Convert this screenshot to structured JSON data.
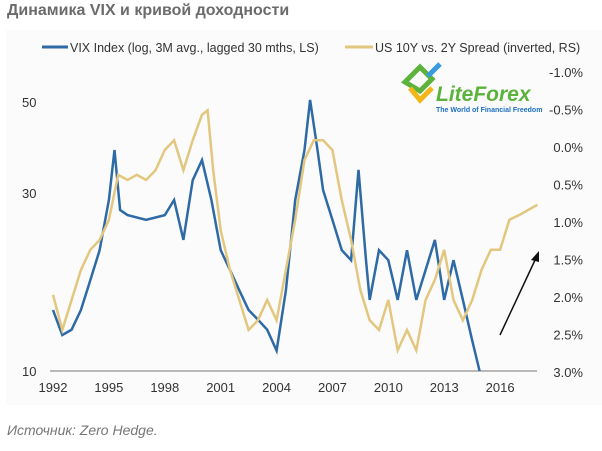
{
  "title": "Динамика VIX и кривой доходности",
  "source": "Источник: Zero Hedge.",
  "logo": {
    "name": "LiteForex",
    "tagline": "The World of Financial Freedom"
  },
  "chart_data": {
    "type": "line",
    "x_ticks": [
      "1992",
      "1995",
      "1998",
      "2001",
      "2004",
      "2007",
      "2010",
      "2013",
      "2016"
    ],
    "left_axis": {
      "scale": "log",
      "ticks": [
        "10",
        "30",
        "50"
      ],
      "range": [
        10,
        50
      ]
    },
    "right_axis": {
      "inverted": true,
      "ticks": [
        "-1.0%",
        "-0.5%",
        "0.0%",
        "0.5%",
        "1.0%",
        "1.5%",
        "2.0%",
        "2.5%",
        "3.0%"
      ],
      "range": [
        -1.0,
        3.0
      ]
    },
    "colors": {
      "vix": "#2e6aa6",
      "spread": "#e3c77f"
    },
    "series": [
      {
        "name": "VIX Index (log, 3M avg., lagged 30 mths, LS)",
        "axis": "left",
        "x": [
          1992,
          1992.5,
          1993,
          1993.5,
          1994,
          1994.5,
          1995,
          1995.3,
          1995.6,
          1996,
          1997,
          1998,
          1998.5,
          1999,
          1999.5,
          2000,
          2000.5,
          2001,
          2001.5,
          2002,
          2002.5,
          2003,
          2003.5,
          2004,
          2004.5,
          2005,
          2005.5,
          2005.8,
          2006.2,
          2006.5,
          2007,
          2007.5,
          2008,
          2008.4,
          2008.8,
          2009,
          2009.5,
          2010,
          2010.5,
          2011,
          2011.5,
          2012,
          2012.5,
          2013,
          2013.5,
          2014,
          2014.5,
          2014.9
        ],
        "values": [
          14.4,
          12.4,
          12.8,
          14.4,
          17.2,
          20.6,
          27.8,
          37.5,
          26.2,
          25.4,
          24.7,
          25.4,
          27.8,
          21.9,
          31.3,
          35.3,
          27.8,
          20.6,
          18.3,
          16.2,
          14.4,
          13.6,
          12.8,
          11.3,
          16.2,
          27.8,
          37.5,
          50.6,
          37.5,
          29.5,
          24.7,
          20.6,
          19.4,
          33.3,
          19.4,
          15.3,
          20.6,
          19.4,
          15.3,
          20.6,
          15.3,
          18.3,
          21.9,
          15.3,
          19.4,
          15.3,
          12.0,
          10
        ]
      },
      {
        "name": "US 10Y vs. 2Y Spread (inverted, RS)",
        "axis": "right",
        "x": [
          1992,
          1992.5,
          1993,
          1993.5,
          1994,
          1994.5,
          1995,
          1995.5,
          1996,
          1996.5,
          1997,
          1997.5,
          1998,
          1998.5,
          1999,
          1999.5,
          2000,
          2000.3,
          2000.6,
          2001,
          2001.5,
          2002,
          2002.5,
          2003,
          2003.5,
          2004,
          2004.5,
          2005,
          2005.5,
          2006,
          2006.5,
          2007,
          2007.5,
          2008,
          2008.5,
          2009,
          2009.5,
          2010,
          2010.5,
          2011,
          2011.5,
          2012,
          2012.5,
          2013,
          2013.5,
          2014,
          2014.5,
          2015,
          2015.5,
          2016,
          2016.5,
          2017,
          2017.5,
          2018
        ],
        "values": [
          1.97,
          2.44,
          2.04,
          1.64,
          1.37,
          1.24,
          0.97,
          0.37,
          0.44,
          0.37,
          0.44,
          0.31,
          0.04,
          -0.09,
          0.31,
          -0.09,
          -0.43,
          -0.49,
          0.31,
          1.11,
          1.64,
          2.04,
          2.44,
          2.31,
          2.04,
          2.31,
          1.64,
          0.97,
          0.17,
          -0.09,
          -0.09,
          0.04,
          0.71,
          1.24,
          1.91,
          2.31,
          2.44,
          2.04,
          2.71,
          2.44,
          2.71,
          2.04,
          1.77,
          1.37,
          2.04,
          2.31,
          2.04,
          1.64,
          1.37,
          1.37,
          0.97,
          0.91,
          0.84,
          0.77
        ]
      }
    ]
  }
}
